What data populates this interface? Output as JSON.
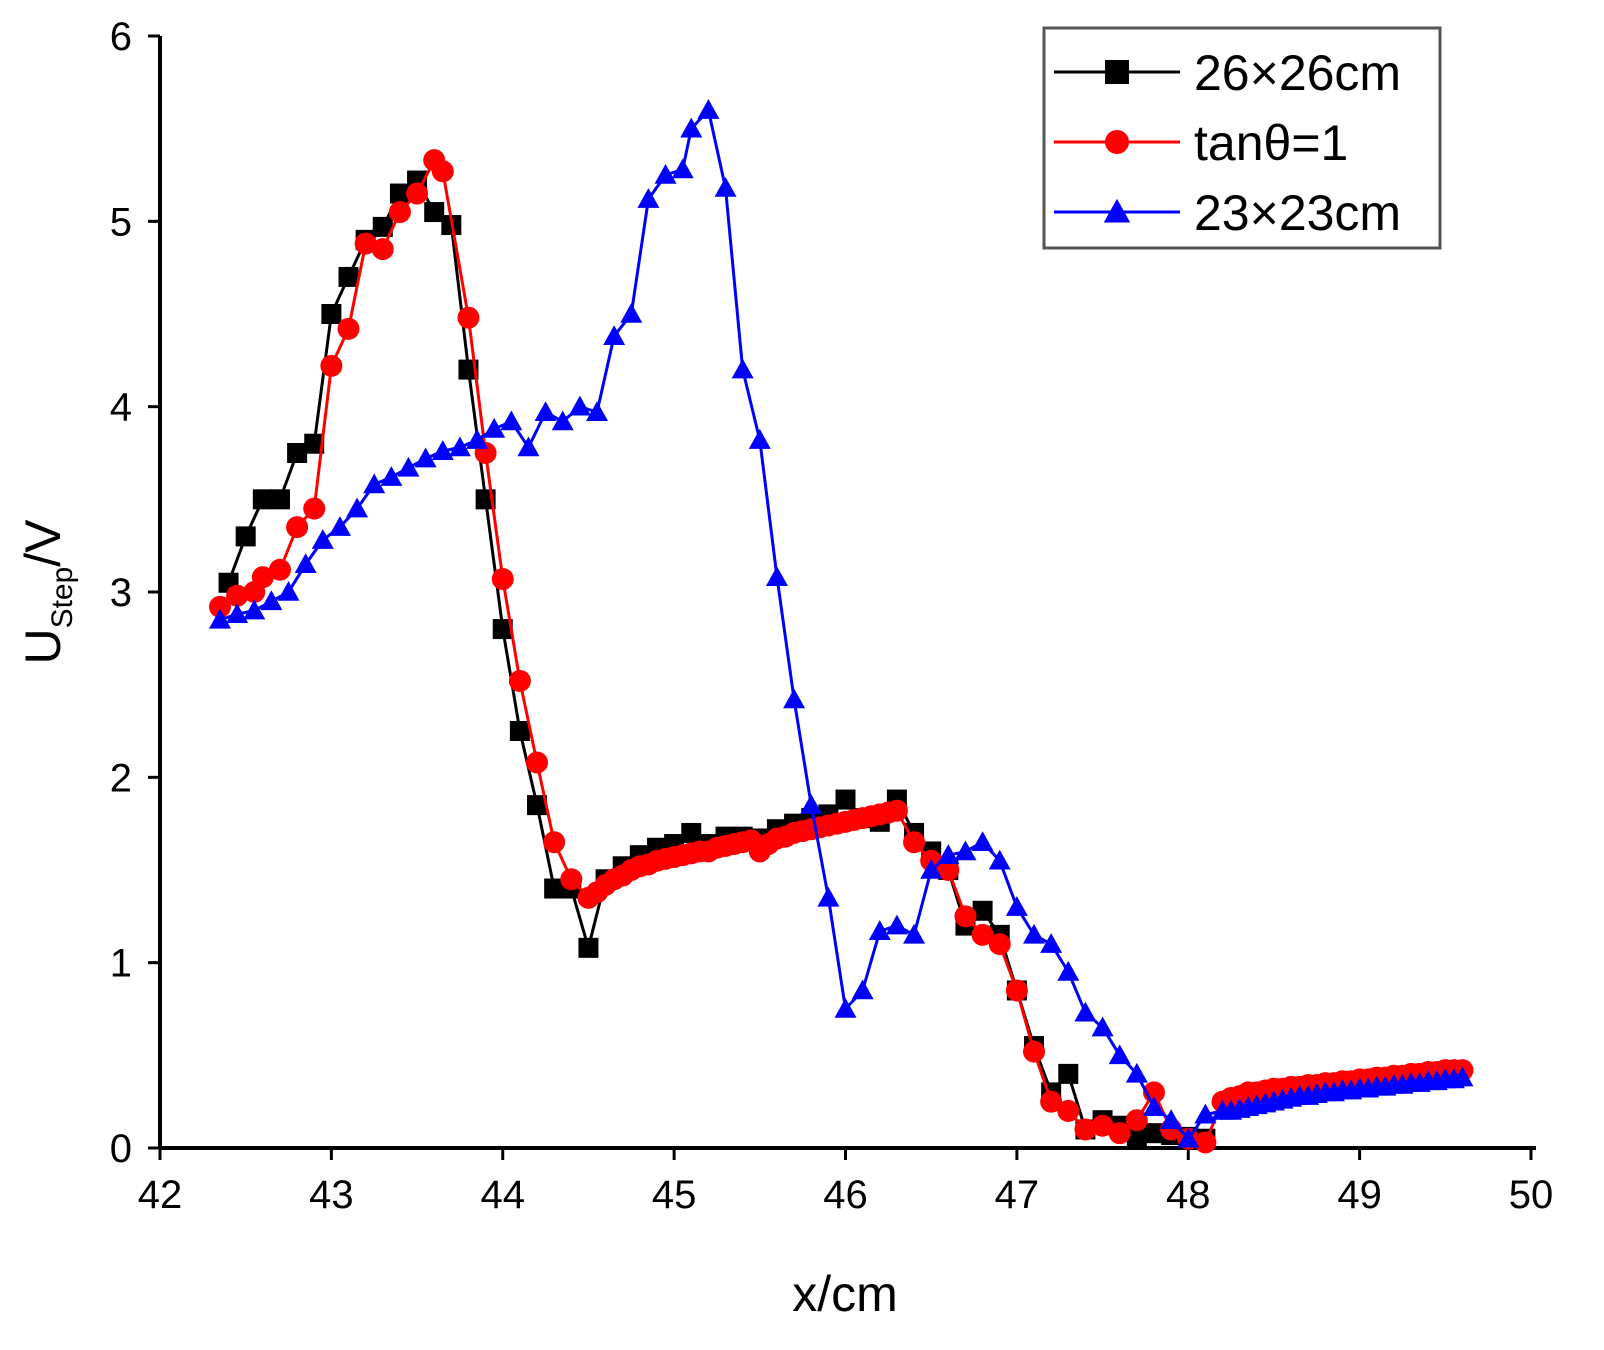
{
  "chart_data": {
    "type": "line",
    "title": "",
    "xlabel": "x/cm",
    "ylabel": {
      "main": "U",
      "sub": "Step",
      "suffix": "/V"
    },
    "xlim": [
      42,
      50
    ],
    "ylim": [
      0,
      6
    ],
    "xticks": [
      42,
      43,
      44,
      45,
      46,
      47,
      48,
      49,
      50
    ],
    "xtick_labels": [
      "42",
      "43",
      "44",
      "45",
      "46",
      "47",
      "48",
      "49",
      "50"
    ],
    "yticks": [
      0,
      1,
      2,
      3,
      4,
      5,
      6
    ],
    "ytick_labels": [
      "0",
      "1",
      "2",
      "3",
      "4",
      "5",
      "6"
    ],
    "grid": false,
    "legend_position": "top-right",
    "series": [
      {
        "name": "26×26cm",
        "color": "#000000",
        "marker": "square",
        "x": [
          42.4,
          42.5,
          42.6,
          42.7,
          42.8,
          42.9,
          43.0,
          43.1,
          43.2,
          43.3,
          43.4,
          43.5,
          43.6,
          43.7,
          43.8,
          43.9,
          44.0,
          44.1,
          44.2,
          44.3,
          44.4,
          44.5,
          44.6,
          44.7,
          44.8,
          44.9,
          45.0,
          45.1,
          45.2,
          45.3,
          45.4,
          45.5,
          45.6,
          45.7,
          45.8,
          45.9,
          46.0,
          46.1,
          46.2,
          46.3,
          46.4,
          46.5,
          46.6,
          46.7,
          46.8,
          46.9,
          47.0,
          47.1,
          47.2,
          47.3,
          47.4,
          47.5,
          47.6,
          47.7,
          47.8,
          47.9,
          48.0,
          48.1
        ],
        "y": [
          3.05,
          3.3,
          3.5,
          3.5,
          3.75,
          3.8,
          4.5,
          4.7,
          4.9,
          4.97,
          5.15,
          5.22,
          5.05,
          4.98,
          4.2,
          3.5,
          2.8,
          2.25,
          1.85,
          1.4,
          1.4,
          1.08,
          1.45,
          1.52,
          1.58,
          1.62,
          1.64,
          1.7,
          1.64,
          1.68,
          1.68,
          1.67,
          1.72,
          1.75,
          1.78,
          1.8,
          1.88,
          1.78,
          1.76,
          1.88,
          1.7,
          1.6,
          1.5,
          1.2,
          1.28,
          1.15,
          0.85,
          0.55,
          0.3,
          0.4,
          0.1,
          0.15,
          0.12,
          0.05,
          0.08,
          0.07,
          0.06,
          0.05
        ]
      },
      {
        "name": "tanθ=1",
        "color": "#ff0000",
        "marker": "circle",
        "x": [
          42.35,
          42.45,
          42.55,
          42.6,
          42.7,
          42.8,
          42.9,
          43.0,
          43.1,
          43.2,
          43.3,
          43.4,
          43.5,
          43.6,
          43.65,
          43.8,
          43.9,
          44.0,
          44.1,
          44.2,
          44.3,
          44.4,
          44.5,
          44.55,
          44.6,
          44.65,
          44.7,
          44.75,
          44.8,
          44.85,
          44.9,
          44.95,
          45.0,
          45.05,
          45.1,
          45.15,
          45.2,
          45.25,
          45.3,
          45.35,
          45.4,
          45.45,
          45.5,
          45.55,
          45.6,
          45.65,
          45.7,
          45.75,
          45.8,
          45.85,
          45.9,
          45.95,
          46.0,
          46.05,
          46.1,
          46.15,
          46.2,
          46.25,
          46.3,
          46.4,
          46.5,
          46.6,
          46.7,
          46.8,
          46.9,
          47.0,
          47.1,
          47.2,
          47.3,
          47.4,
          47.5,
          47.6,
          47.7,
          47.8,
          47.9,
          48.0,
          48.1,
          48.2,
          48.25,
          48.3,
          48.35,
          48.4,
          48.45,
          48.5,
          48.55,
          48.6,
          48.65,
          48.7,
          48.75,
          48.8,
          48.85,
          48.9,
          48.95,
          49.0,
          49.05,
          49.1,
          49.15,
          49.2,
          49.25,
          49.3,
          49.35,
          49.4,
          49.45,
          49.5,
          49.55,
          49.6
        ],
        "y": [
          2.92,
          2.98,
          3.0,
          3.08,
          3.12,
          3.35,
          3.45,
          4.22,
          4.42,
          4.88,
          4.85,
          5.05,
          5.15,
          5.33,
          5.27,
          4.48,
          3.75,
          3.07,
          2.52,
          2.08,
          1.65,
          1.45,
          1.35,
          1.38,
          1.42,
          1.45,
          1.47,
          1.5,
          1.52,
          1.53,
          1.55,
          1.56,
          1.57,
          1.58,
          1.59,
          1.6,
          1.6,
          1.62,
          1.63,
          1.64,
          1.65,
          1.66,
          1.6,
          1.64,
          1.67,
          1.68,
          1.7,
          1.71,
          1.72,
          1.73,
          1.74,
          1.75,
          1.76,
          1.77,
          1.78,
          1.79,
          1.8,
          1.81,
          1.82,
          1.65,
          1.55,
          1.5,
          1.25,
          1.15,
          1.1,
          0.85,
          0.52,
          0.25,
          0.2,
          0.1,
          0.12,
          0.08,
          0.15,
          0.3,
          0.1,
          0.05,
          0.03,
          0.25,
          0.27,
          0.28,
          0.3,
          0.3,
          0.31,
          0.32,
          0.32,
          0.33,
          0.33,
          0.34,
          0.34,
          0.35,
          0.35,
          0.36,
          0.36,
          0.37,
          0.37,
          0.38,
          0.38,
          0.39,
          0.39,
          0.4,
          0.4,
          0.41,
          0.41,
          0.42,
          0.42,
          0.42
        ]
      },
      {
        "name": "23×23cm",
        "color": "#0000ff",
        "marker": "triangle",
        "x": [
          42.35,
          42.45,
          42.55,
          42.65,
          42.75,
          42.85,
          42.95,
          43.05,
          43.15,
          43.25,
          43.35,
          43.45,
          43.55,
          43.65,
          43.75,
          43.85,
          43.95,
          44.05,
          44.15,
          44.25,
          44.35,
          44.45,
          44.55,
          44.65,
          44.75,
          44.85,
          44.95,
          45.05,
          45.1,
          45.2,
          45.3,
          45.4,
          45.5,
          45.6,
          45.7,
          45.8,
          45.9,
          46.0,
          46.1,
          46.2,
          46.3,
          46.4,
          46.5,
          46.6,
          46.7,
          46.8,
          46.9,
          47.0,
          47.1,
          47.2,
          47.3,
          47.4,
          47.5,
          47.6,
          47.7,
          47.8,
          47.9,
          48.0,
          48.1,
          48.2,
          48.25,
          48.3,
          48.35,
          48.4,
          48.45,
          48.5,
          48.55,
          48.6,
          48.65,
          48.7,
          48.75,
          48.8,
          48.85,
          48.9,
          48.95,
          49.0,
          49.05,
          49.1,
          49.15,
          49.2,
          49.25,
          49.3,
          49.35,
          49.4,
          49.45,
          49.5,
          49.55,
          49.6
        ],
        "y": [
          2.85,
          2.88,
          2.9,
          2.95,
          3.0,
          3.15,
          3.28,
          3.35,
          3.45,
          3.58,
          3.62,
          3.67,
          3.72,
          3.76,
          3.78,
          3.82,
          3.88,
          3.92,
          3.78,
          3.97,
          3.92,
          4.0,
          3.97,
          4.38,
          4.5,
          5.12,
          5.25,
          5.28,
          5.5,
          5.6,
          5.18,
          4.2,
          3.82,
          3.08,
          2.42,
          1.85,
          1.35,
          0.75,
          0.85,
          1.17,
          1.2,
          1.15,
          1.5,
          1.58,
          1.6,
          1.65,
          1.55,
          1.3,
          1.15,
          1.1,
          0.95,
          0.73,
          0.65,
          0.5,
          0.4,
          0.22,
          0.15,
          0.05,
          0.18,
          0.2,
          0.2,
          0.21,
          0.22,
          0.23,
          0.24,
          0.25,
          0.26,
          0.27,
          0.28,
          0.28,
          0.29,
          0.3,
          0.3,
          0.31,
          0.31,
          0.32,
          0.32,
          0.33,
          0.33,
          0.34,
          0.34,
          0.35,
          0.35,
          0.36,
          0.36,
          0.37,
          0.37,
          0.38
        ]
      }
    ]
  }
}
